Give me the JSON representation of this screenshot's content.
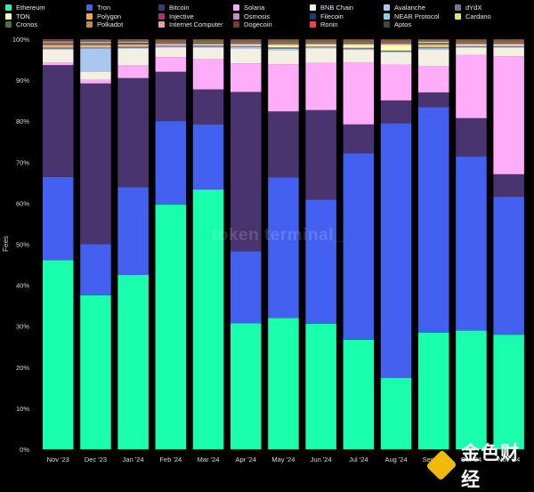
{
  "watermark": "token terminal_",
  "logo_text": "金色财经",
  "chart_data": {
    "type": "bar",
    "stacked": true,
    "title": "",
    "xlabel": "",
    "ylabel": "Fees",
    "ylim": [
      0,
      100
    ],
    "y_ticks": [
      "0%",
      "10%",
      "20%",
      "30%",
      "40%",
      "50%",
      "60%",
      "70%",
      "80%",
      "90%",
      "100%"
    ],
    "grid": false,
    "legend_position": "top",
    "categories": [
      "Nov '23",
      "Dec '23",
      "Jan '24",
      "Feb '24",
      "Mar '24",
      "Apr '24",
      "May '24",
      "Jun '24",
      "Jul '24",
      "Aug '24",
      "Sep '24",
      "Oct '24",
      "Nov '24"
    ],
    "series": [
      {
        "name": "Ethereum",
        "color": "#19ffad",
        "values": [
          46,
          37.2,
          42.6,
          60,
          62.6,
          30.8,
          31.8,
          30.8,
          26.6,
          17.5,
          28.5,
          29,
          28
        ]
      },
      {
        "name": "Tron",
        "color": "#4361ee",
        "values": [
          20.2,
          12.4,
          21.4,
          20.5,
          15.7,
          17.6,
          34,
          30.4,
          45.3,
          62.3,
          55,
          42.5,
          33.7
        ]
      },
      {
        "name": "Bitcoin",
        "color": "#4a3470",
        "values": [
          27.2,
          38.8,
          26.6,
          12.1,
          8.4,
          38.9,
          16,
          22,
          7,
          5.6,
          3.6,
          9.4,
          5.5
        ]
      },
      {
        "name": "Solana",
        "color": "#ffadf8",
        "values": [
          0.6,
          0.9,
          3.2,
          3.6,
          7.3,
          7,
          11.4,
          11.6,
          15,
          8.8,
          6.4,
          15.5,
          28.8
        ]
      },
      {
        "name": "BNB Chain",
        "color": "#f3f0e3",
        "values": [
          3.1,
          2,
          4,
          2.4,
          2.8,
          3.6,
          3.4,
          3.6,
          3.1,
          3,
          4,
          1.8,
          2.2
        ]
      },
      {
        "name": "Avalanche",
        "color": "#a8c8f0",
        "values": [
          0.3,
          5.6,
          0.2,
          0.2,
          0.2,
          0.4,
          0.4,
          0.2,
          0.2,
          0.2,
          0.4,
          0.1,
          0.1
        ]
      },
      {
        "name": "dYdX",
        "color": "#75768f",
        "values": [
          0.3,
          0.2,
          0.3,
          0.2,
          0.3,
          0.2,
          0.3,
          0.2,
          0.3,
          0.2,
          0.3,
          0.2,
          0.2
        ]
      },
      {
        "name": "TON",
        "color": "#ffffbe",
        "values": [
          0.2,
          0.2,
          0.2,
          0.2,
          0.2,
          0.3,
          0.5,
          0.4,
          0.7,
          1.4,
          0.3,
          0.3,
          0.3
        ]
      },
      {
        "name": "Polygon",
        "color": "#f5a94a",
        "values": [
          0.4,
          0.4,
          0.3,
          0.3,
          0.2,
          0.3,
          0.4,
          0.3,
          0.3,
          0.3,
          0.3,
          0.3,
          0.3
        ]
      },
      {
        "name": "Injective",
        "color": "#a0396a",
        "values": [
          0.2,
          0.2,
          0.2,
          0.1,
          0.1,
          0.1,
          0.1,
          0.1,
          0.1,
          0.1,
          0.1,
          0.1,
          0.1
        ]
      },
      {
        "name": "Osmosis",
        "color": "#c58acb",
        "values": [
          0.1,
          0.1,
          0.1,
          0.1,
          0.1,
          0.1,
          0.1,
          0.1,
          0.1,
          0.1,
          0.1,
          0.1,
          0.1
        ]
      },
      {
        "name": "Filecoin",
        "color": "#1e3a6e",
        "values": [
          0.1,
          0.1,
          0.1,
          0.1,
          0.1,
          0.1,
          0.1,
          0.1,
          0.1,
          0.1,
          0.1,
          0.1,
          0.1
        ]
      },
      {
        "name": "NEAR Protocol",
        "color": "#7fd3e8",
        "values": [
          0.1,
          0.2,
          0.1,
          0.1,
          0.1,
          0.1,
          0.1,
          0.1,
          0.1,
          0.1,
          0.1,
          0.1,
          0.1
        ]
      },
      {
        "name": "Cardano",
        "color": "#e8e070",
        "values": [
          0.2,
          0.2,
          0.2,
          0.1,
          0.1,
          0.1,
          0.1,
          0.1,
          0.1,
          0.1,
          0.3,
          0.1,
          0.1
        ]
      },
      {
        "name": "Cronos",
        "color": "#4e6e3a",
        "values": [
          0.1,
          0.1,
          0.1,
          0.1,
          0.1,
          0.1,
          0.1,
          0.1,
          0.1,
          0.1,
          0.1,
          0.1,
          0.1
        ]
      },
      {
        "name": "Polkadot",
        "color": "#b89050",
        "values": [
          0.1,
          0.1,
          0.1,
          0.1,
          0.1,
          0.1,
          0.1,
          0.1,
          0.1,
          0.1,
          0.1,
          0.1,
          0.1
        ]
      },
      {
        "name": "Internet Computer",
        "color": "#e8a0a0",
        "values": [
          0.1,
          0.1,
          0.1,
          0.1,
          0.1,
          0.1,
          0.1,
          0.1,
          0.1,
          0.1,
          0.1,
          0.1,
          0.1
        ]
      },
      {
        "name": "Dogecoin",
        "color": "#7a3a3a",
        "values": [
          0.2,
          0.1,
          0.1,
          0.1,
          0.1,
          0.1,
          0.1,
          0.1,
          0.1,
          0.1,
          0.1,
          0.1,
          0.1
        ]
      },
      {
        "name": "Ronin",
        "color": "#e84545",
        "values": [
          0.1,
          0.1,
          0.1,
          0.1,
          0.1,
          0.1,
          0.1,
          0.1,
          0.1,
          0.1,
          0.1,
          0.1,
          0.1
        ]
      },
      {
        "name": "Aptos",
        "color": "#3d4a3a",
        "values": [
          0.1,
          0.1,
          0.1,
          0.1,
          0.1,
          0.1,
          0.1,
          0.1,
          0.1,
          0.1,
          0.1,
          0.1,
          0.1
        ]
      }
    ]
  }
}
